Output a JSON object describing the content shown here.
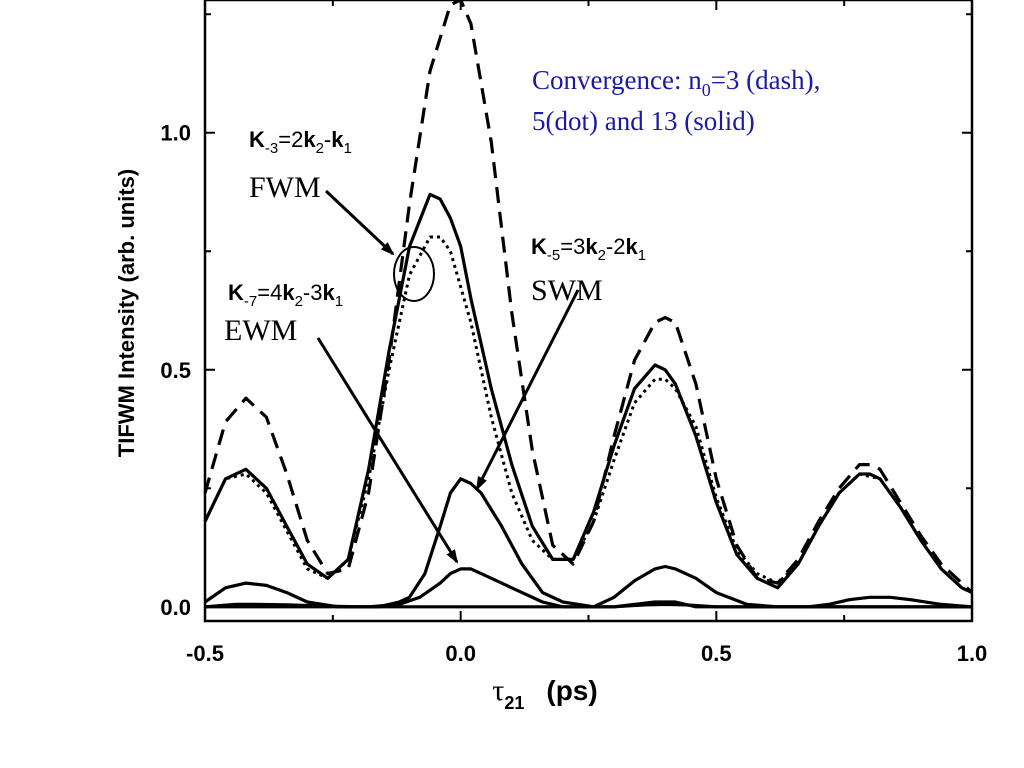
{
  "chart_data": {
    "type": "line",
    "xlabel_symbol": "τ",
    "xlabel_sub": "21",
    "xlabel_unit": "(ps)",
    "ylabel": "TIFWM Intensity (arb. units)",
    "xlim": [
      -0.5,
      1.0
    ],
    "ylim": [
      -0.03,
      1.28
    ],
    "x_ticks": [
      -0.5,
      0.0,
      0.5,
      1.0
    ],
    "x_tick_labels": [
      "-0.5",
      "0.0",
      "0.5",
      "1.0"
    ],
    "y_ticks": [
      0.0,
      0.5,
      1.0
    ],
    "y_tick_labels": [
      "0.0",
      "0.5",
      "1.0"
    ],
    "series": [
      {
        "style": "dash",
        "x": [
          -0.5,
          -0.46,
          -0.42,
          -0.38,
          -0.34,
          -0.3,
          -0.26,
          -0.22,
          -0.18,
          -0.14,
          -0.1,
          -0.06,
          -0.02,
          0.0,
          0.02,
          0.06,
          0.1,
          0.14,
          0.18,
          0.22,
          0.26,
          0.3,
          0.34,
          0.38,
          0.4,
          0.42,
          0.46,
          0.5,
          0.54,
          0.58,
          0.62,
          0.66,
          0.7,
          0.74,
          0.78,
          0.8,
          0.82,
          0.86,
          0.9,
          0.94,
          0.98,
          1.0
        ],
        "y": [
          0.24,
          0.39,
          0.44,
          0.4,
          0.28,
          0.14,
          0.07,
          0.08,
          0.24,
          0.52,
          0.85,
          1.13,
          1.27,
          1.28,
          1.23,
          0.98,
          0.62,
          0.33,
          0.13,
          0.09,
          0.18,
          0.36,
          0.52,
          0.6,
          0.61,
          0.6,
          0.47,
          0.27,
          0.13,
          0.06,
          0.05,
          0.1,
          0.18,
          0.25,
          0.3,
          0.3,
          0.29,
          0.22,
          0.15,
          0.09,
          0.05,
          0.03
        ]
      },
      {
        "style": "dot",
        "x": [
          -0.5,
          -0.46,
          -0.42,
          -0.38,
          -0.34,
          -0.3,
          -0.26,
          -0.22,
          -0.18,
          -0.14,
          -0.1,
          -0.06,
          -0.04,
          -0.02,
          0.02,
          0.06,
          0.1,
          0.14,
          0.18,
          0.22,
          0.26,
          0.3,
          0.34,
          0.38,
          0.4,
          0.42,
          0.46,
          0.5,
          0.54,
          0.58,
          0.62,
          0.66,
          0.7,
          0.74,
          0.78,
          0.82,
          0.86,
          0.9,
          0.94,
          0.98,
          1.0
        ],
        "y": [
          0.18,
          0.27,
          0.28,
          0.24,
          0.16,
          0.08,
          0.06,
          0.1,
          0.27,
          0.5,
          0.7,
          0.78,
          0.78,
          0.75,
          0.6,
          0.4,
          0.24,
          0.14,
          0.1,
          0.1,
          0.18,
          0.31,
          0.43,
          0.48,
          0.48,
          0.46,
          0.38,
          0.23,
          0.12,
          0.07,
          0.05,
          0.09,
          0.17,
          0.24,
          0.28,
          0.27,
          0.21,
          0.14,
          0.08,
          0.04,
          0.03
        ]
      },
      {
        "style": "solid",
        "x": [
          -0.5,
          -0.46,
          -0.42,
          -0.38,
          -0.34,
          -0.3,
          -0.26,
          -0.22,
          -0.18,
          -0.14,
          -0.1,
          -0.06,
          -0.04,
          -0.02,
          0.0,
          0.02,
          0.06,
          0.1,
          0.14,
          0.18,
          0.22,
          0.26,
          0.3,
          0.34,
          0.38,
          0.4,
          0.42,
          0.46,
          0.5,
          0.54,
          0.58,
          0.62,
          0.66,
          0.7,
          0.74,
          0.78,
          0.8,
          0.82,
          0.86,
          0.9,
          0.94,
          0.98,
          1.0
        ],
        "y": [
          0.18,
          0.27,
          0.29,
          0.25,
          0.17,
          0.09,
          0.06,
          0.1,
          0.29,
          0.54,
          0.76,
          0.87,
          0.86,
          0.82,
          0.76,
          0.65,
          0.46,
          0.3,
          0.17,
          0.1,
          0.1,
          0.2,
          0.34,
          0.46,
          0.51,
          0.5,
          0.47,
          0.36,
          0.22,
          0.11,
          0.06,
          0.04,
          0.09,
          0.17,
          0.24,
          0.28,
          0.28,
          0.27,
          0.21,
          0.14,
          0.08,
          0.04,
          0.03
        ]
      },
      {
        "style": "solid",
        "x": [
          -0.5,
          -0.44,
          -0.4,
          -0.36,
          -0.3,
          -0.24,
          -0.16,
          -0.12,
          -0.1,
          -0.07,
          -0.04,
          -0.02,
          0.0,
          0.02,
          0.04,
          0.08,
          0.12,
          0.16,
          0.2,
          0.26,
          0.3,
          0.34,
          0.38,
          0.4,
          0.42,
          0.46,
          0.5,
          0.56,
          0.62,
          0.7,
          0.76,
          0.8,
          0.84,
          0.9,
          0.96,
          1.0
        ],
        "y": [
          0.0,
          0.0,
          0.0,
          0.0,
          0.0,
          0.0,
          0.0,
          0.01,
          0.02,
          0.07,
          0.17,
          0.24,
          0.27,
          0.26,
          0.24,
          0.17,
          0.09,
          0.03,
          0.01,
          0.0,
          0.0,
          0.005,
          0.01,
          0.01,
          0.01,
          0.0,
          0.0,
          0.0,
          0.0,
          0.0,
          0.0,
          0.0,
          0.0,
          0.0,
          0.0,
          0.0
        ]
      },
      {
        "style": "solid",
        "x": [
          -0.5,
          -0.46,
          -0.42,
          -0.38,
          -0.34,
          -0.3,
          -0.24,
          -0.18,
          -0.12,
          -0.08,
          -0.04,
          -0.02,
          0.0,
          0.02,
          0.04,
          0.08,
          0.12,
          0.16,
          0.2,
          0.26,
          0.3,
          0.34,
          0.38,
          0.4,
          0.42,
          0.46,
          0.5,
          0.56,
          0.62,
          0.68,
          0.72,
          0.76,
          0.8,
          0.84,
          0.88,
          0.94,
          1.0
        ],
        "y": [
          0.01,
          0.04,
          0.05,
          0.045,
          0.03,
          0.01,
          0.0,
          0.0,
          0.005,
          0.02,
          0.05,
          0.07,
          0.08,
          0.08,
          0.07,
          0.05,
          0.03,
          0.01,
          0.0,
          0.0,
          0.02,
          0.055,
          0.08,
          0.085,
          0.08,
          0.06,
          0.03,
          0.005,
          0.0,
          0.0,
          0.005,
          0.015,
          0.02,
          0.02,
          0.015,
          0.005,
          0.0
        ]
      },
      {
        "style": "solid",
        "x": [
          -0.5,
          -0.44,
          -0.4,
          -0.34,
          -0.28,
          -0.2,
          -0.1,
          0.0,
          0.1,
          0.2,
          0.3,
          0.36,
          0.4,
          0.44,
          0.5,
          0.6,
          0.7,
          0.8,
          0.9,
          1.0
        ],
        "y": [
          0.0,
          0.005,
          0.005,
          0.004,
          0.002,
          0.0,
          0.0,
          0.0,
          0.0,
          0.0,
          0.0,
          0.004,
          0.005,
          0.004,
          0.0,
          0.0,
          0.0,
          0.0,
          0.0,
          0.0
        ]
      }
    ],
    "annotations": {
      "convergence_line1_pre": "Convergence: n",
      "convergence_line1_sub": "0",
      "convergence_line1_post": "=3 (dash),",
      "convergence_line2": "5(dot) and 13 (solid)",
      "fwm_label": "FWM",
      "swm_label": "SWM",
      "ewm_label": "EWM",
      "fwm_eq": {
        "k": "K",
        "sub": "-3",
        "rest1": "=2",
        "k2": "k",
        "k2sub": "2",
        "rest2": "-",
        "k1": "k",
        "k1sub": "1"
      },
      "swm_eq": {
        "k": "K",
        "sub": "-5",
        "rest1": "=3",
        "k2": "k",
        "k2sub": "2",
        "rest2": "-2",
        "k1": "k",
        "k1sub": "1"
      },
      "ewm_eq": {
        "k": "K",
        "sub": "-7",
        "rest1": "=4",
        "k2": "k",
        "k2sub": "2",
        "rest2": "-3",
        "k1": "k",
        "k1sub": "1"
      }
    },
    "colors": {
      "lines": "#000000",
      "convergence_text": "#1a1aa6",
      "background": "#ffffff"
    }
  }
}
